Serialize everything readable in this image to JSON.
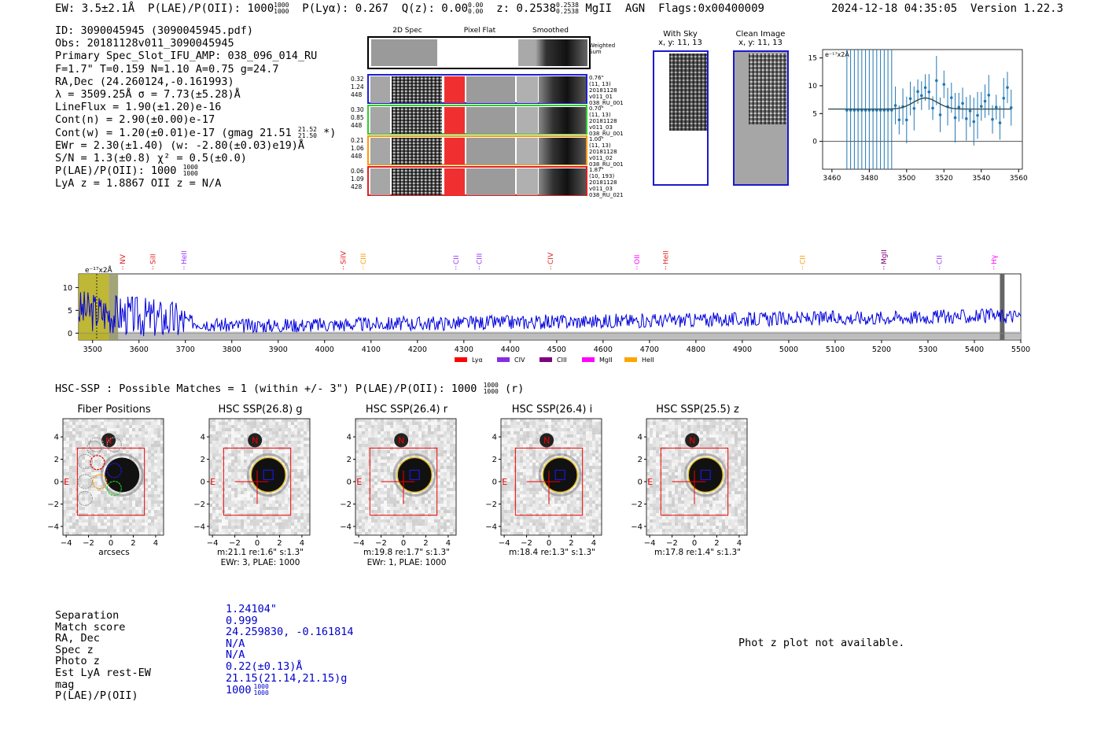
{
  "header": {
    "ew": "EW: 3.5±2.1Å",
    "plae_label": "P(LAE)/P(OII): 1000",
    "plae_hi": "1000",
    "plae_lo": "1000",
    "plya": "P(Lyα): 0.267",
    "qz_label": "Q(z): 0.00",
    "qz_hi": "0.00",
    "qz_lo": "0.00",
    "z_label": "z: 0.2538",
    "z_hi": "0.2538",
    "z_lo": "0.2538",
    "line_type": "MgII",
    "agn": "AGN",
    "flags": "Flags:0x00400009",
    "datetime": "2024-12-18 04:35:05",
    "version": "Version 1.22.3"
  },
  "info": {
    "id": "ID: 3090045945 (3090045945.pdf)",
    "obs": "Obs: 20181128v011_3090045945",
    "primary": "Primary Spec_Slot_IFU_AMP: 038_096_014_RU",
    "fibinfo": "F=1.7\"  T=0.159  N=1.10  A=0.75  g=24.7",
    "radec": "RA,Dec (24.260124,-0.161993)",
    "lambda": "λ = 3509.25Å  σ = 7.73(±5.28)Å",
    "lineflux": "LineFlux = 1.90(±1.20)e-16",
    "contn": "Cont(n) = 2.90(±0.00)e-17",
    "contw_pre": "Cont(w) = 1.20(±0.01)e-17 (gmag 21.51",
    "contw_hi": "21.52",
    "contw_lo": "21.50",
    "contw_post": "*)",
    "ewr": "EWr = 2.30(±1.40)  (w: -2.80(±0.03)e19)Å",
    "sn": "S/N = 1.3(±0.8)  χ² = 0.5(±0.0)",
    "plae_pre": "P(LAE)/P(OII): 1000",
    "plae_hi": "1000",
    "plae_lo": "1000",
    "lyaz": "LyA z = 1.8867   OII z = N/A"
  },
  "cutouts": {
    "col_2d": "2D Spec",
    "col_flat": "Pixel Flat",
    "col_smooth": "Smoothed",
    "weighted": "Weighted",
    "sum": "Sum",
    "rows": [
      {
        "left": [
          "0.32",
          "1.24",
          "448"
        ],
        "right": [
          "0.76\"",
          "(11, 13)",
          "20181128",
          "v011_01",
          "038_RU_001"
        ],
        "color": "#1f1fcf"
      },
      {
        "left": [
          "0.30",
          "0.85",
          "448"
        ],
        "right": [
          "0.70\"",
          "(11, 13)",
          "20181128",
          "v011_03",
          "038_RU_001"
        ],
        "color": "#2ecc2e"
      },
      {
        "left": [
          "0.21",
          "1.06",
          "448"
        ],
        "right": [
          "1.00\"",
          "(11, 13)",
          "20181128",
          "v011_02",
          "038_RU_001"
        ],
        "color": "#ff9900"
      },
      {
        "left": [
          "0.06",
          "1.09",
          "428"
        ],
        "right": [
          "1.87\"",
          "(10, 193)",
          "20181128",
          "v011_03",
          "038_RU_021"
        ],
        "color": "#e02020"
      }
    ]
  },
  "sky": {
    "with_sky": "With Sky",
    "with_sky_xy": "x, y: 11, 13",
    "clean": "Clean Image",
    "clean_xy": "x, y: 11, 13"
  },
  "zoom_plot": {
    "ylabel": "e⁻¹⁷x2Å",
    "xticks": [
      "3460",
      "3480",
      "3500",
      "3520",
      "3540",
      "3560"
    ],
    "yticks": [
      "0",
      "5",
      "10",
      "15"
    ]
  },
  "spectrum": {
    "ylabel": "e⁻¹⁷x2Å",
    "xticks": [
      "3500",
      "3600",
      "3700",
      "3800",
      "3900",
      "4000",
      "4100",
      "4200",
      "4300",
      "4400",
      "4500",
      "4600",
      "4700",
      "4800",
      "4900",
      "5000",
      "5100",
      "5200",
      "5300",
      "5400",
      "5500"
    ],
    "yticks": [
      "0",
      "5",
      "10"
    ],
    "lines": [
      {
        "name": "NV",
        "x": 3565,
        "color": "#e02020"
      },
      {
        "name": "SiII",
        "x": 3630,
        "color": "#e02020"
      },
      {
        "name": "HeII",
        "x": 3697,
        "color": "#9b30ff"
      },
      {
        "name": "SiIV",
        "x": 4040,
        "color": "#e02020"
      },
      {
        "name": "CIII",
        "x": 4083,
        "color": "#ff9900"
      },
      {
        "name": "CII",
        "x": 4283,
        "color": "#9b30ff"
      },
      {
        "name": "CIII",
        "x": 4333,
        "color": "#9b30ff"
      },
      {
        "name": "CIV",
        "x": 4487,
        "color": "#e02020"
      },
      {
        "name": "OII",
        "x": 4673,
        "color": "#ff00ff"
      },
      {
        "name": "HeII",
        "x": 4735,
        "color": "#e02020"
      },
      {
        "name": "CII",
        "x": 5030,
        "color": "#ff9900"
      },
      {
        "name": "MgII",
        "x": 5205,
        "color": "#7b007b"
      },
      {
        "name": "CII",
        "x": 5325,
        "color": "#9b30ff"
      },
      {
        "name": "Hγ",
        "x": 5442,
        "color": "#ff00ff"
      }
    ],
    "legend": [
      {
        "name": "Lyα",
        "color": "#ff0000"
      },
      {
        "name": "CIV",
        "color": "#8a2be2"
      },
      {
        "name": "CIII",
        "color": "#800080"
      },
      {
        "name": "MgII",
        "color": "#ff00ff"
      },
      {
        "name": "HeII",
        "color": "#ffa500"
      }
    ]
  },
  "hsc": {
    "summary_pre": "HSC-SSP : Possible Matches = 1 (within +/- 3\")  P(LAE)/P(OII): 1000",
    "summary_hi": "1000",
    "summary_lo": "1000",
    "summary_post": "(r)",
    "panels": [
      {
        "title": "Fiber Positions",
        "cap1": "arcsecs",
        "cap2": ""
      },
      {
        "title": "HSC SSP(26.8) g",
        "cap1": "m:21.1  re:1.6\"  s:1.3\"",
        "cap2": "EWr: 3, PLAE: 1000"
      },
      {
        "title": "HSC SSP(26.4) r",
        "cap1": "m:19.8  re:1.7\"  s:1.3\"",
        "cap2": "EWr: 1, PLAE: 1000"
      },
      {
        "title": "HSC SSP(26.4) i",
        "cap1": "m:18.4  re:1.3\"  s:1.3\"",
        "cap2": ""
      },
      {
        "title": "HSC SSP(25.5) z",
        "cap1": "m:17.8  re:1.4\"  s:1.3\"",
        "cap2": ""
      }
    ],
    "axis_ticks": [
      "−4",
      "−2",
      "0",
      "2",
      "4"
    ],
    "north": "N",
    "east": "E"
  },
  "match_table": {
    "labels": [
      "Separation",
      "Match score",
      "RA, Dec",
      "Spec z",
      "Photo z",
      "Est LyA rest-EW",
      "mag",
      "P(LAE)/P(OII)"
    ],
    "values": [
      "1.24104\"",
      "0.999",
      "24.259830, -0.161814",
      "N/A",
      "N/A",
      "0.22(±0.13)Å",
      "21.15(21.14,21.15)g",
      "1000"
    ],
    "plae_hi": "1000",
    "plae_lo": "1000"
  },
  "photz_note": "Phot z plot not available."
}
